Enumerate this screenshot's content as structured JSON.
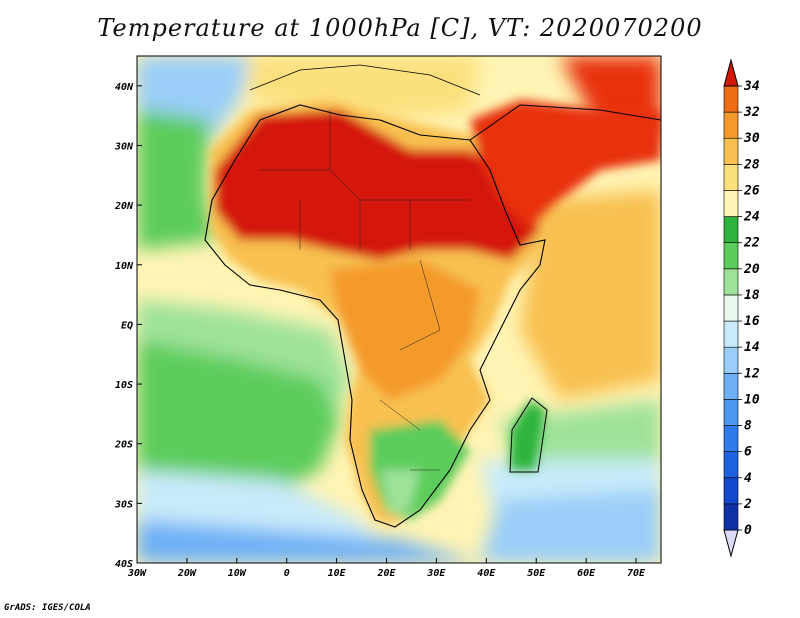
{
  "title": "Temperature at 1000hPa [C], VT: 2020070200",
  "credit": "GrADS: IGES/COLA",
  "map": {
    "variable": "Temperature",
    "level": "1000hPa",
    "units": "C",
    "valid_time": "2020070200",
    "lon_range": [
      -30,
      75
    ],
    "lat_range": [
      -40,
      45
    ],
    "lon_ticks": [
      "30W",
      "20W",
      "10W",
      "0",
      "10E",
      "20E",
      "30E",
      "40E",
      "50E",
      "60E",
      "70E"
    ],
    "lat_ticks": [
      "40S",
      "30S",
      "20S",
      "10S",
      "EQ",
      "10N",
      "20N",
      "30N",
      "40N"
    ]
  },
  "colorbar": {
    "levels": [
      "0",
      "2",
      "4",
      "6",
      "8",
      "10",
      "12",
      "14",
      "16",
      "18",
      "20",
      "22",
      "24",
      "26",
      "28",
      "30",
      "32",
      "34"
    ],
    "colors": [
      "#0a1a6e",
      "#1030a8",
      "#1448cc",
      "#1e62e0",
      "#2e7cec",
      "#4c98f2",
      "#6eb0f6",
      "#9acef8",
      "#c8eafa",
      "#e8f8ec",
      "#9ee29a",
      "#5ccc5c",
      "#2eb43e",
      "#fff4b4",
      "#fce07e",
      "#f8c050",
      "#f49a2a",
      "#ee6c14",
      "#e83010",
      "#d41808"
    ],
    "under_color": "#dcdcf8"
  }
}
